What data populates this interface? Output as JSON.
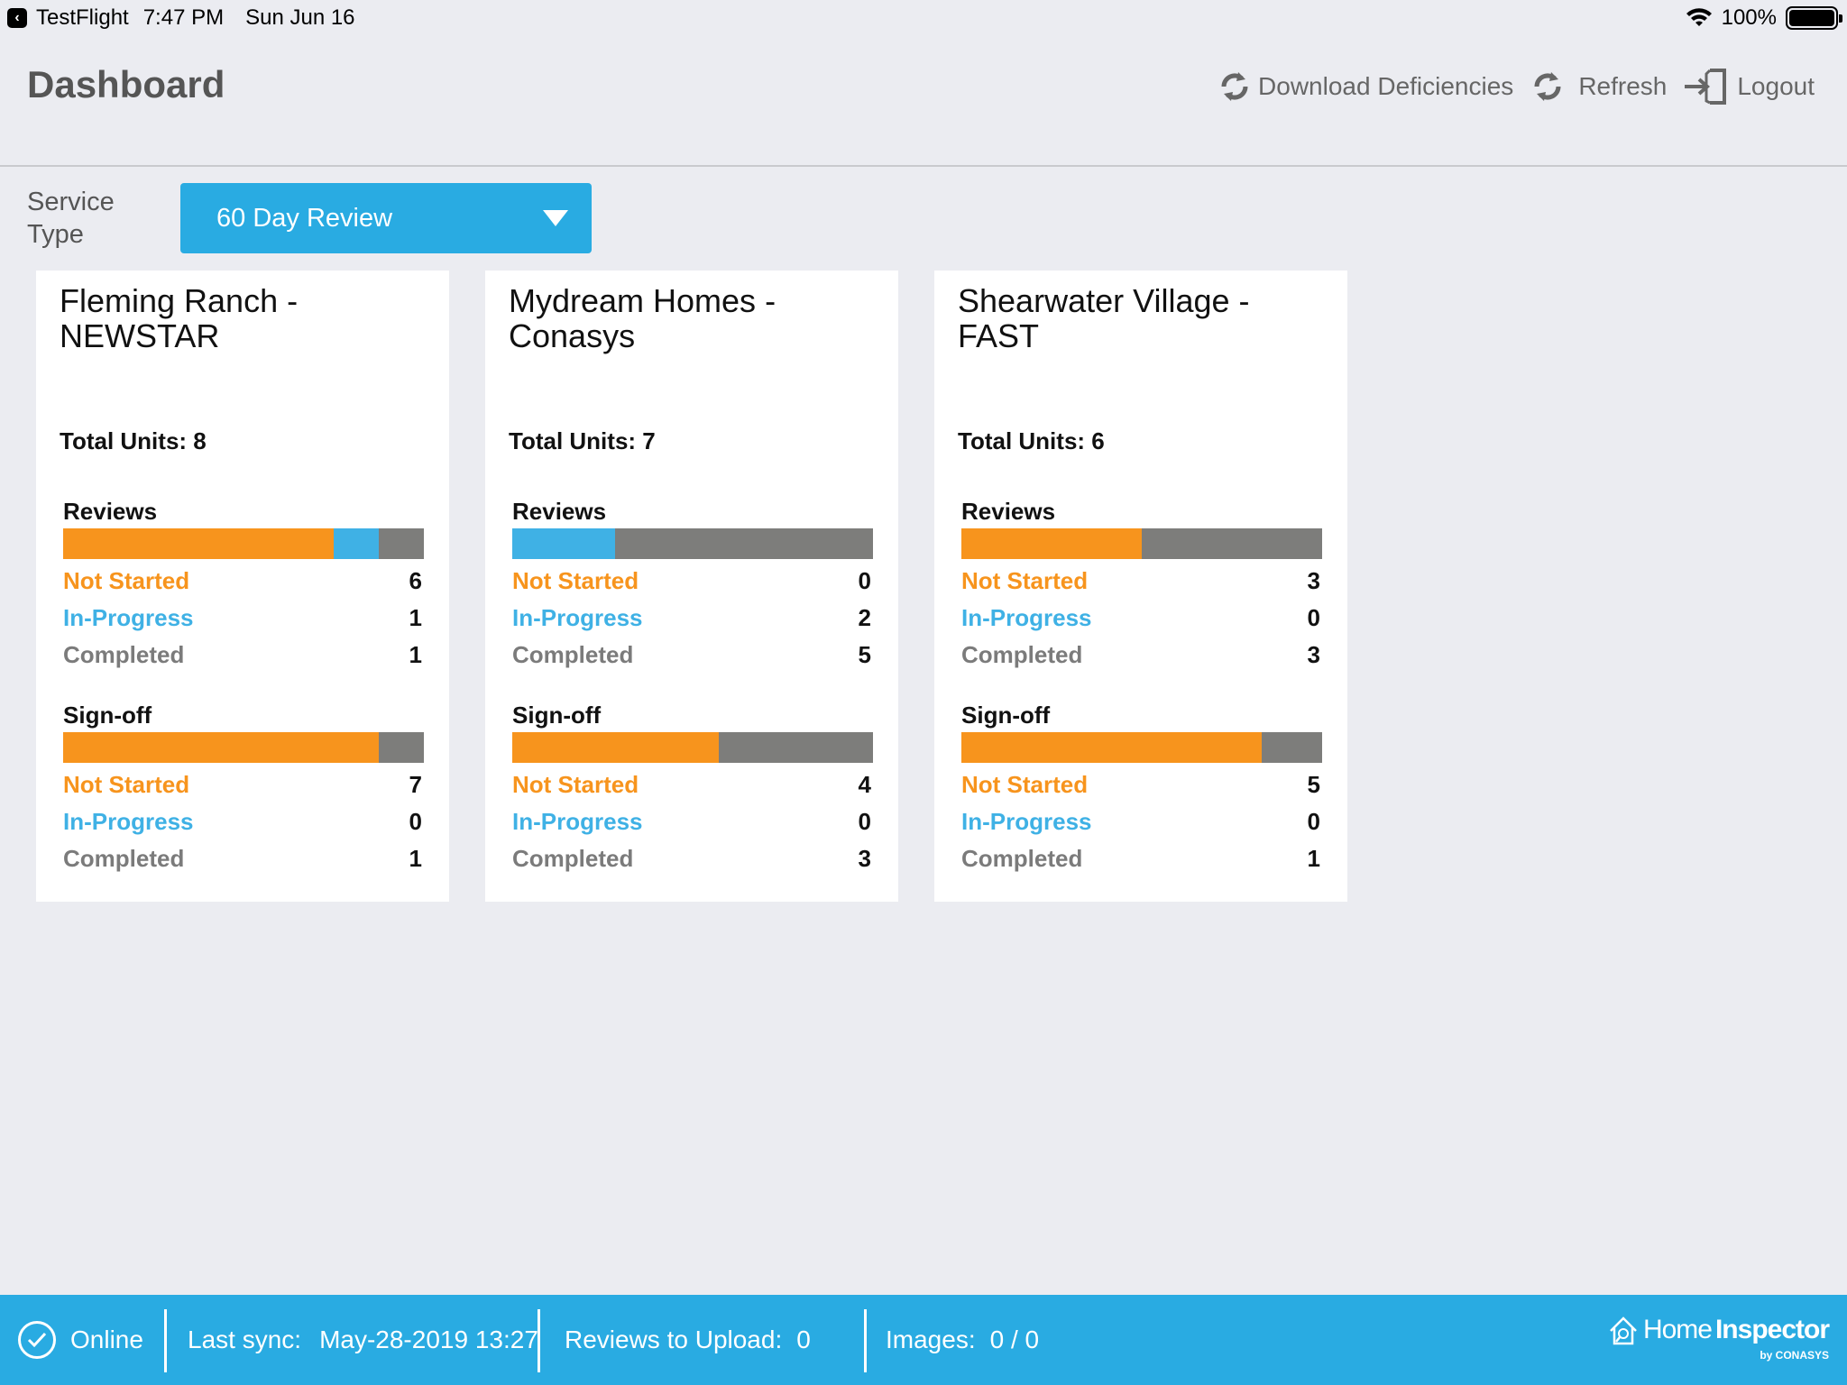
{
  "status_bar": {
    "back_app": "TestFlight",
    "time": "7:47 PM",
    "date": "Sun Jun 16",
    "battery": "100%"
  },
  "header": {
    "title": "Dashboard",
    "actions": {
      "download": "Download Deficiencies",
      "refresh": "Refresh",
      "logout": "Logout"
    }
  },
  "filter": {
    "label_line1": "Service",
    "label_line2": "Type",
    "selected": "60 Day Review"
  },
  "cards": [
    {
      "title_line1": "Fleming Ranch -",
      "title_line2": "NEWSTAR",
      "total_units": "Total Units: 8",
      "reviews": {
        "title": "Reviews",
        "not_started_label": "Not Started",
        "not_started": 6,
        "in_progress_label": "In-Progress",
        "in_progress": 1,
        "completed_label": "Completed",
        "completed": 1
      },
      "signoff": {
        "title": "Sign-off",
        "not_started_label": "Not Started",
        "not_started": 7,
        "in_progress_label": "In-Progress",
        "in_progress": 0,
        "completed_label": "Completed",
        "completed": 1
      }
    },
    {
      "title_line1": "Mydream Homes -",
      "title_line2": "Conasys",
      "total_units": "Total Units: 7",
      "reviews": {
        "title": "Reviews",
        "not_started_label": "Not Started",
        "not_started": 0,
        "in_progress_label": "In-Progress",
        "in_progress": 2,
        "completed_label": "Completed",
        "completed": 5
      },
      "signoff": {
        "title": "Sign-off",
        "not_started_label": "Not Started",
        "not_started": 4,
        "in_progress_label": "In-Progress",
        "in_progress": 0,
        "completed_label": "Completed",
        "completed": 3
      }
    },
    {
      "title_line1": "Shearwater Village -",
      "title_line2": "FAST",
      "total_units": "Total Units: 6",
      "reviews": {
        "title": "Reviews",
        "not_started_label": "Not Started",
        "not_started": 3,
        "in_progress_label": "In-Progress",
        "in_progress": 0,
        "completed_label": "Completed",
        "completed": 3
      },
      "signoff": {
        "title": "Sign-off",
        "not_started_label": "Not Started",
        "not_started": 5,
        "in_progress_label": "In-Progress",
        "in_progress": 0,
        "completed_label": "Completed",
        "completed": 1
      }
    }
  ],
  "footer": {
    "online": "Online",
    "last_sync_label": "Last sync:",
    "last_sync_value": "May-28-2019 13:27",
    "reviews_upload_label": "Reviews to Upload:",
    "reviews_upload_value": "0",
    "images_label": "Images:",
    "images_value": "0 / 0",
    "brand_home": "Home",
    "brand_inspector": "Inspector",
    "brand_by": "by CONASYS"
  },
  "colors": {
    "accent": "#29abe2",
    "not_started": "#f7941d",
    "in_progress": "#3fb1e5",
    "completed": "#7d7d7b"
  }
}
